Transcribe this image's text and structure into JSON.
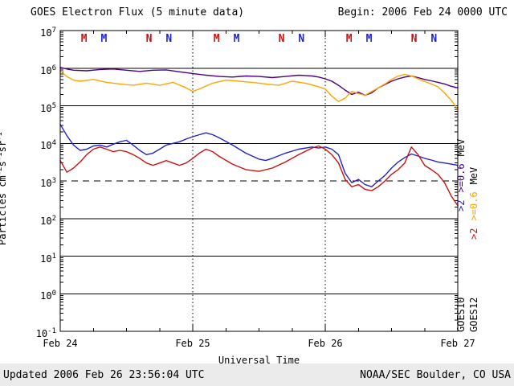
{
  "header": {
    "title": "GOES Electron Flux (5 minute data)",
    "begin": "Begin: 2006 Feb 24 0000 UTC"
  },
  "footer": {
    "updated": "Updated 2006 Feb 26 23:56:04 UTC",
    "credit": "NOAA/SEC Boulder, CO USA"
  },
  "axes": {
    "xlabel": "Universal Time",
    "ylabel_parts": [
      {
        "text": "Particles  cm"
      },
      {
        "sup": "-2"
      },
      {
        "text": "s"
      },
      {
        "sup": "-1"
      },
      {
        "text": "sr"
      },
      {
        "sup": "-1"
      }
    ]
  },
  "right_labels": {
    "goes10": {
      "energy_high": ">2",
      "energy_low": ">=0.6",
      "unit": "MeV",
      "satellite": "GOES10"
    },
    "goes12": {
      "energy_high": ">2",
      "energy_low": ">=0.6",
      "unit": "MeV",
      "satellite": "GOES12"
    }
  },
  "colors": {
    "goes10_06mev": "#4b0082",
    "goes12_06mev": "#ffa500",
    "goes10_2mev": "#2222cc",
    "goes12_2mev": "#cc1111",
    "axis": "#000000"
  },
  "chart_data": {
    "type": "line",
    "title": "GOES Electron Flux (5 minute data)",
    "xlabel": "Universal Time",
    "ylabel": "Particles cm-2 s-1 sr-1",
    "x_unit": "days since 2006 Feb 24 0000 UTC",
    "x_range_days": [
      0,
      3
    ],
    "x_tick_labels": [
      "Feb 24",
      "Feb 25",
      "Feb 26",
      "Feb 27"
    ],
    "y_scale": "log10",
    "y_log_range": [
      -1,
      7
    ],
    "y_tick_exponents": [
      7,
      6,
      5,
      4,
      3,
      2,
      1,
      0,
      -1
    ],
    "solid_gridline_exponents": [
      6,
      5,
      4,
      2,
      1,
      0
    ],
    "dashed_gridline_exponent": 3,
    "day_gridlines": [
      1,
      2
    ],
    "legend_position": "right-rotated",
    "grid": "horizontal solid per decade, vertical dotted at day boundaries",
    "series": [
      {
        "name": "GOES10 >=0.6 MeV",
        "satellite": "GOES10",
        "energy": ">=0.6 MeV",
        "color": "#4b0082",
        "x": [
          0,
          0.05,
          0.1,
          0.2,
          0.3,
          0.4,
          0.5,
          0.6,
          0.7,
          0.8,
          0.9,
          1.0,
          1.1,
          1.2,
          1.3,
          1.4,
          1.5,
          1.6,
          1.7,
          1.8,
          1.9,
          1.95,
          2.0,
          2.05,
          2.1,
          2.15,
          2.2,
          2.25,
          2.3,
          2.35,
          2.4,
          2.5,
          2.55,
          2.6,
          2.65,
          2.7,
          2.75,
          2.8,
          2.85,
          2.9,
          2.95,
          3.0
        ],
        "y": [
          1050000.0,
          950000.0,
          880000.0,
          850000.0,
          920000.0,
          950000.0,
          880000.0,
          820000.0,
          880000.0,
          900000.0,
          800000.0,
          720000.0,
          650000.0,
          600000.0,
          580000.0,
          620000.0,
          600000.0,
          560000.0,
          600000.0,
          650000.0,
          620000.0,
          580000.0,
          520000.0,
          450000.0,
          350000.0,
          260000.0,
          200000.0,
          230000.0,
          190000.0,
          220000.0,
          300000.0,
          450000.0,
          520000.0,
          580000.0,
          620000.0,
          560000.0,
          500000.0,
          460000.0,
          420000.0,
          380000.0,
          330000.0,
          300000.0
        ]
      },
      {
        "name": "GOES12 >=0.6 MeV",
        "satellite": "GOES12",
        "energy": ">=0.6 MeV",
        "color": "#ffa500",
        "x": [
          0,
          0.05,
          0.1,
          0.15,
          0.25,
          0.35,
          0.45,
          0.55,
          0.65,
          0.75,
          0.85,
          0.95,
          1.0,
          1.05,
          1.15,
          1.25,
          1.35,
          1.45,
          1.55,
          1.65,
          1.75,
          1.85,
          1.95,
          2.0,
          2.05,
          2.1,
          2.15,
          2.2,
          2.25,
          2.3,
          2.35,
          2.4,
          2.45,
          2.5,
          2.55,
          2.6,
          2.65,
          2.7,
          2.75,
          2.8,
          2.85,
          2.9,
          2.95,
          3.0
        ],
        "y": [
          850000.0,
          600000.0,
          480000.0,
          450000.0,
          500000.0,
          420000.0,
          380000.0,
          350000.0,
          400000.0,
          350000.0,
          420000.0,
          300000.0,
          240000.0,
          280000.0,
          400000.0,
          480000.0,
          450000.0,
          420000.0,
          380000.0,
          350000.0,
          450000.0,
          400000.0,
          320000.0,
          280000.0,
          180000.0,
          130000.0,
          160000.0,
          240000.0,
          210000.0,
          190000.0,
          240000.0,
          300000.0,
          380000.0,
          500000.0,
          620000.0,
          680000.0,
          620000.0,
          520000.0,
          440000.0,
          380000.0,
          320000.0,
          220000.0,
          140000.0,
          80000.0
        ]
      },
      {
        "name": "GOES10 >2 MeV",
        "satellite": "GOES10",
        "energy": ">2 MeV",
        "color": "#2222cc",
        "x": [
          0,
          0.05,
          0.1,
          0.15,
          0.2,
          0.25,
          0.3,
          0.35,
          0.4,
          0.45,
          0.5,
          0.55,
          0.6,
          0.65,
          0.7,
          0.75,
          0.8,
          0.85,
          0.9,
          0.95,
          1.0,
          1.05,
          1.1,
          1.15,
          1.2,
          1.3,
          1.4,
          1.5,
          1.55,
          1.6,
          1.7,
          1.8,
          1.9,
          1.95,
          2.0,
          2.05,
          2.1,
          2.15,
          2.2,
          2.25,
          2.3,
          2.35,
          2.4,
          2.45,
          2.5,
          2.55,
          2.6,
          2.65,
          2.7,
          2.75,
          2.8,
          2.85,
          2.9,
          2.95,
          3.0
        ],
        "y": [
          32000.0,
          16000.0,
          9000.0,
          6500.0,
          7000.0,
          8500.0,
          9000.0,
          8000.0,
          9500.0,
          11000.0,
          12000.0,
          9000.0,
          6500.0,
          5000.0,
          5500.0,
          7000.0,
          9000.0,
          10000.0,
          11000.0,
          13000.0,
          15000.0,
          17000.0,
          19000.0,
          17000.0,
          14000.0,
          9000.0,
          5500.0,
          3800.0,
          3500.0,
          4000.0,
          5500.0,
          7000.0,
          8000.0,
          7500.0,
          8000.0,
          7000.0,
          5000.0,
          1600.0,
          900.0,
          1100.0,
          800.0,
          700.0,
          1000.0,
          1400.0,
          2200.0,
          3200.0,
          4200.0,
          5200.0,
          4600.0,
          4000.0,
          3600.0,
          3200.0,
          3000.0,
          2800.0,
          2600.0
        ]
      },
      {
        "name": "GOES12 >2 MeV",
        "satellite": "GOES12",
        "energy": ">2 MeV",
        "color": "#cc1111",
        "x": [
          0,
          0.05,
          0.1,
          0.15,
          0.2,
          0.25,
          0.3,
          0.35,
          0.4,
          0.45,
          0.5,
          0.55,
          0.6,
          0.65,
          0.7,
          0.75,
          0.8,
          0.85,
          0.9,
          0.95,
          1.0,
          1.05,
          1.1,
          1.15,
          1.2,
          1.3,
          1.4,
          1.5,
          1.6,
          1.7,
          1.8,
          1.9,
          1.95,
          2.0,
          2.05,
          2.1,
          2.15,
          2.2,
          2.25,
          2.3,
          2.35,
          2.4,
          2.45,
          2.5,
          2.55,
          2.6,
          2.65,
          2.7,
          2.75,
          2.8,
          2.85,
          2.9,
          2.95,
          3.0
        ],
        "y": [
          3500.0,
          1700.0,
          2200.0,
          3200.0,
          5000.0,
          7000.0,
          8000.0,
          7000.0,
          6000.0,
          6500.0,
          6000.0,
          5000.0,
          4000.0,
          3000.0,
          2600.0,
          3000.0,
          3500.0,
          3000.0,
          2600.0,
          3000.0,
          4000.0,
          5500.0,
          7000.0,
          6000.0,
          4500.0,
          2800.0,
          2000.0,
          1800.0,
          2200.0,
          3200.0,
          5000.0,
          7500.0,
          8500.0,
          7000.0,
          5000.0,
          3000.0,
          1100.0,
          700.0,
          800.0,
          600.0,
          550.0,
          700.0,
          1000.0,
          1500.0,
          2000.0,
          3000.0,
          8000.0,
          5000.0,
          2600.0,
          2000.0,
          1500.0,
          900.0,
          400.0,
          220.0
        ]
      }
    ],
    "noon_midnight_markers": [
      {
        "label": "M",
        "day": 0.18,
        "color": "#cc1111"
      },
      {
        "label": "M",
        "day": 0.33,
        "color": "#2222cc"
      },
      {
        "label": "N",
        "day": 0.67,
        "color": "#cc1111"
      },
      {
        "label": "N",
        "day": 0.82,
        "color": "#2222cc"
      },
      {
        "label": "M",
        "day": 1.18,
        "color": "#cc1111"
      },
      {
        "label": "M",
        "day": 1.33,
        "color": "#2222cc"
      },
      {
        "label": "N",
        "day": 1.67,
        "color": "#cc1111"
      },
      {
        "label": "N",
        "day": 1.82,
        "color": "#2222cc"
      },
      {
        "label": "M",
        "day": 2.18,
        "color": "#cc1111"
      },
      {
        "label": "M",
        "day": 2.33,
        "color": "#2222cc"
      },
      {
        "label": "N",
        "day": 2.67,
        "color": "#cc1111"
      },
      {
        "label": "N",
        "day": 2.82,
        "color": "#2222cc"
      }
    ]
  }
}
